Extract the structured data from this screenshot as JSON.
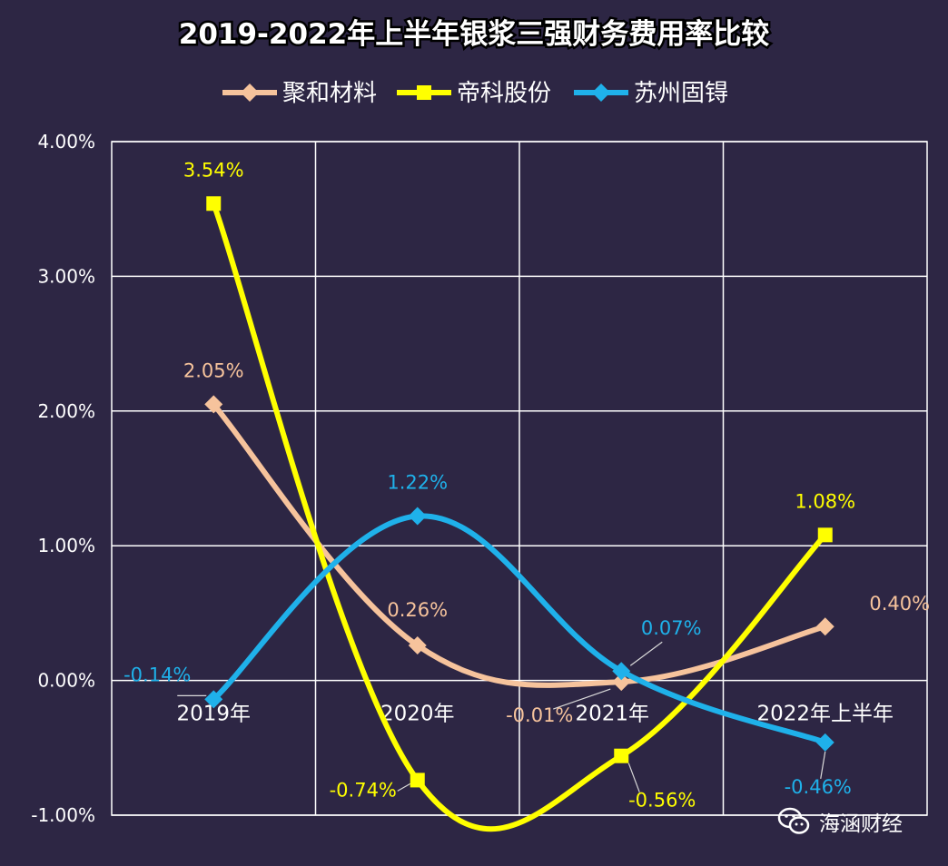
{
  "chart_data": {
    "type": "line",
    "title": "2019-2022年上半年银浆三强财务费用率比较",
    "categories": [
      "2019年",
      "2020年",
      "2021年",
      "2022年上半年"
    ],
    "ylim": [
      -1.0,
      4.0
    ],
    "yticks": [
      "-1.00%",
      "0.00%",
      "1.00%",
      "2.00%",
      "3.00%",
      "4.00%"
    ],
    "grid": true,
    "smooth": true,
    "legend": "top",
    "series": [
      {
        "name": "聚和材料",
        "color": "#f6c39c",
        "values": [
          2.05,
          0.26,
          -0.01,
          0.4
        ],
        "labels": [
          "2.05%",
          "0.26%",
          "-0.01%",
          "0.40%"
        ]
      },
      {
        "name": "帝科股份",
        "color": "#ffff00",
        "values": [
          3.54,
          -0.74,
          -0.56,
          1.08
        ],
        "labels": [
          "3.54%",
          "-0.74%",
          "-0.56%",
          "1.08%"
        ]
      },
      {
        "name": "苏州固锝",
        "color": "#1fb1ea",
        "values": [
          -0.14,
          1.22,
          0.07,
          -0.46
        ],
        "labels": [
          "-0.14%",
          "1.22%",
          "0.07%",
          "-0.46%"
        ]
      }
    ]
  },
  "watermark": {
    "text": "海涵财经"
  }
}
